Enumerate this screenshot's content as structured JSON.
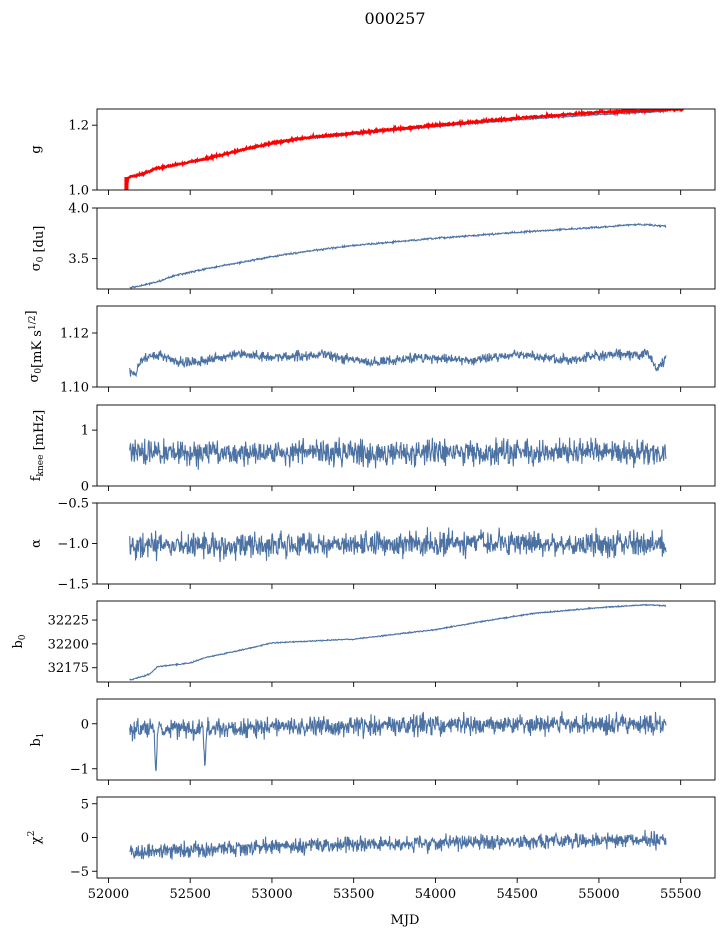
{
  "figure": {
    "title": "000257",
    "xlabel": "MJD"
  },
  "colors": {
    "series": "#4c72a4",
    "reference": "#ff0000"
  },
  "chart_data": [
    {
      "type": "line",
      "ylabel": "g",
      "ylabel_parts": [
        {
          "t": "g"
        }
      ],
      "ylim": [
        1.0,
        1.25
      ],
      "yticks": [
        1.0,
        1.2
      ],
      "ytick_labels": [
        "1.0",
        "1.2"
      ],
      "xlim": [
        51930,
        55710
      ],
      "series": [
        {
          "color": "#4c72a4",
          "noise": 0.001,
          "points": [
            [
              52110,
              1.036
            ],
            [
              52200,
              1.045
            ],
            [
              52300,
              1.066
            ],
            [
              52400,
              1.075
            ],
            [
              52600,
              1.095
            ],
            [
              52800,
              1.12
            ],
            [
              53000,
              1.142
            ],
            [
              53200,
              1.158
            ],
            [
              53500,
              1.172
            ],
            [
              54000,
              1.196
            ],
            [
              54500,
              1.217
            ],
            [
              55000,
              1.233
            ],
            [
              55410,
              1.243
            ]
          ]
        },
        {
          "color": "#ff0000",
          "noise": 0.0015,
          "points": [
            [
              52110,
              1.038
            ],
            [
              52200,
              1.048
            ],
            [
              52300,
              1.068
            ],
            [
              52400,
              1.077
            ],
            [
              52600,
              1.097
            ],
            [
              52800,
              1.122
            ],
            [
              53000,
              1.145
            ],
            [
              53200,
              1.161
            ],
            [
              53500,
              1.176
            ],
            [
              54000,
              1.2
            ],
            [
              54500,
              1.222
            ],
            [
              55000,
              1.24
            ],
            [
              55520,
              1.25
            ]
          ],
          "spikes": [
            [
              52110,
              1.0,
              1.04
            ]
          ]
        }
      ]
    },
    {
      "type": "line",
      "ylabel": "σ0 [du]",
      "ylabel_parts": [
        {
          "t": "σ"
        },
        {
          "t": "0",
          "sub": true
        },
        {
          "t": " [du]"
        }
      ],
      "ylim": [
        3.2,
        4.0
      ],
      "yticks": [
        3.5,
        4.0
      ],
      "ytick_labels": [
        "3.5",
        "4.0"
      ],
      "xlim": [
        51930,
        55710
      ],
      "series": [
        {
          "color": "#4c72a4",
          "noise": 0.004,
          "points": [
            [
              52130,
              3.21
            ],
            [
              52300,
              3.27
            ],
            [
              52400,
              3.33
            ],
            [
              52600,
              3.4
            ],
            [
              52800,
              3.46
            ],
            [
              53000,
              3.52
            ],
            [
              53200,
              3.57
            ],
            [
              53500,
              3.63
            ],
            [
              54000,
              3.7
            ],
            [
              54500,
              3.76
            ],
            [
              55000,
              3.81
            ],
            [
              55250,
              3.84
            ],
            [
              55410,
              3.82
            ]
          ]
        }
      ]
    },
    {
      "type": "line",
      "ylabel": "σ0[mK s1/2]",
      "ylabel_parts": [
        {
          "t": "σ"
        },
        {
          "t": "0",
          "sub": true
        },
        {
          "t": "[mK s"
        },
        {
          "t": "1/2",
          "sup": true
        },
        {
          "t": "]"
        }
      ],
      "ylim": [
        1.1,
        1.13
      ],
      "yticks": [
        1.1,
        1.12
      ],
      "ytick_labels": [
        "1.10",
        "1.12"
      ],
      "xlim": [
        51930,
        55710
      ],
      "series": [
        {
          "color": "#4c72a4",
          "noise": 0.0009,
          "points": [
            [
              52130,
              1.106
            ],
            [
              52160,
              1.104
            ],
            [
              52200,
              1.11
            ],
            [
              52300,
              1.112
            ],
            [
              52450,
              1.109
            ],
            [
              52600,
              1.11
            ],
            [
              52800,
              1.112
            ],
            [
              53000,
              1.111
            ],
            [
              53300,
              1.112
            ],
            [
              53600,
              1.109
            ],
            [
              53900,
              1.111
            ],
            [
              54200,
              1.11
            ],
            [
              54500,
              1.112
            ],
            [
              54800,
              1.11
            ],
            [
              55100,
              1.112
            ],
            [
              55300,
              1.112
            ],
            [
              55360,
              1.107
            ],
            [
              55410,
              1.11
            ]
          ]
        }
      ]
    },
    {
      "type": "line",
      "ylabel": "fknee [mHz]",
      "ylabel_parts": [
        {
          "t": "f"
        },
        {
          "t": "knee",
          "sub": true
        },
        {
          "t": " [mHz]"
        }
      ],
      "ylim": [
        0,
        1.45
      ],
      "yticks": [
        0,
        1
      ],
      "ytick_labels": [
        "0",
        "1"
      ],
      "xlim": [
        51930,
        55710
      ],
      "series": [
        {
          "color": "#4c72a4",
          "noise": 0.11,
          "points": [
            [
              52130,
              0.6
            ],
            [
              53000,
              0.6
            ],
            [
              54000,
              0.6
            ],
            [
              55410,
              0.6
            ]
          ]
        }
      ]
    },
    {
      "type": "line",
      "ylabel": "α",
      "ylabel_parts": [
        {
          "t": "α"
        }
      ],
      "ylim": [
        -1.5,
        -0.5
      ],
      "yticks": [
        -1.5,
        -1.0,
        -0.5
      ],
      "ytick_labels": [
        "−1.5",
        "−1.0",
        "−0.5"
      ],
      "xlim": [
        51930,
        55710
      ],
      "series": [
        {
          "color": "#4c72a4",
          "noise": 0.075,
          "points": [
            [
              52130,
              -1.03
            ],
            [
              53000,
              -1.02
            ],
            [
              54000,
              -1.0
            ],
            [
              55410,
              -1.0
            ]
          ]
        }
      ]
    },
    {
      "type": "line",
      "ylabel": "b0",
      "ylabel_parts": [
        {
          "t": "b"
        },
        {
          "t": "0",
          "sub": true
        }
      ],
      "ylim": [
        32160,
        32245
      ],
      "yticks": [
        32175,
        32200,
        32225
      ],
      "ytick_labels": [
        "32175",
        "32200",
        "32225"
      ],
      "xlim": [
        51930,
        55710
      ],
      "series": [
        {
          "color": "#4c72a4",
          "noise": 0.3,
          "points": [
            [
              52130,
              32162
            ],
            [
              52250,
              32168
            ],
            [
              52300,
              32176
            ],
            [
              52500,
              32180
            ],
            [
              52600,
              32186
            ],
            [
              52800,
              32193
            ],
            [
              53000,
              32201
            ],
            [
              53500,
              32205
            ],
            [
              54000,
              32215
            ],
            [
              54300,
              32224
            ],
            [
              54600,
              32232
            ],
            [
              55000,
              32238
            ],
            [
              55300,
              32241
            ],
            [
              55410,
              32240
            ]
          ]
        }
      ]
    },
    {
      "type": "line",
      "ylabel": "b1",
      "ylabel_parts": [
        {
          "t": "b"
        },
        {
          "t": "1",
          "sub": true
        }
      ],
      "ylim": [
        -1.25,
        0.55
      ],
      "yticks": [
        -1,
        0
      ],
      "ytick_labels": [
        "−1",
        "0"
      ],
      "xlim": [
        51930,
        55710
      ],
      "series": [
        {
          "color": "#4c72a4",
          "noise": 0.11,
          "points": [
            [
              52130,
              -0.12
            ],
            [
              53000,
              -0.08
            ],
            [
              54000,
              -0.02
            ],
            [
              55410,
              0.0
            ]
          ],
          "spikes": [
            [
              52290,
              -1.15,
              -0.2
            ],
            [
              52590,
              -1.02,
              -0.1
            ]
          ]
        }
      ]
    },
    {
      "type": "line",
      "ylabel": "χ2",
      "ylabel_parts": [
        {
          "t": "χ"
        },
        {
          "t": "2",
          "sup": true
        }
      ],
      "ylim": [
        -6,
        6
      ],
      "yticks": [
        -5,
        0,
        5
      ],
      "ytick_labels": [
        "−5",
        "0",
        "5"
      ],
      "xlim": [
        51930,
        55710
      ],
      "xticks": [
        52000,
        52500,
        53000,
        53500,
        54000,
        54500,
        55000,
        55500
      ],
      "xtick_labels": [
        "52000",
        "52500",
        "53000",
        "53500",
        "54000",
        "54500",
        "55000",
        "55500"
      ],
      "series": [
        {
          "color": "#4c72a4",
          "noise": 0.55,
          "points": [
            [
              52130,
              -2.2
            ],
            [
              52300,
              -2.0
            ],
            [
              53000,
              -1.3
            ],
            [
              54000,
              -0.8
            ],
            [
              55410,
              -0.3
            ]
          ]
        }
      ]
    }
  ]
}
